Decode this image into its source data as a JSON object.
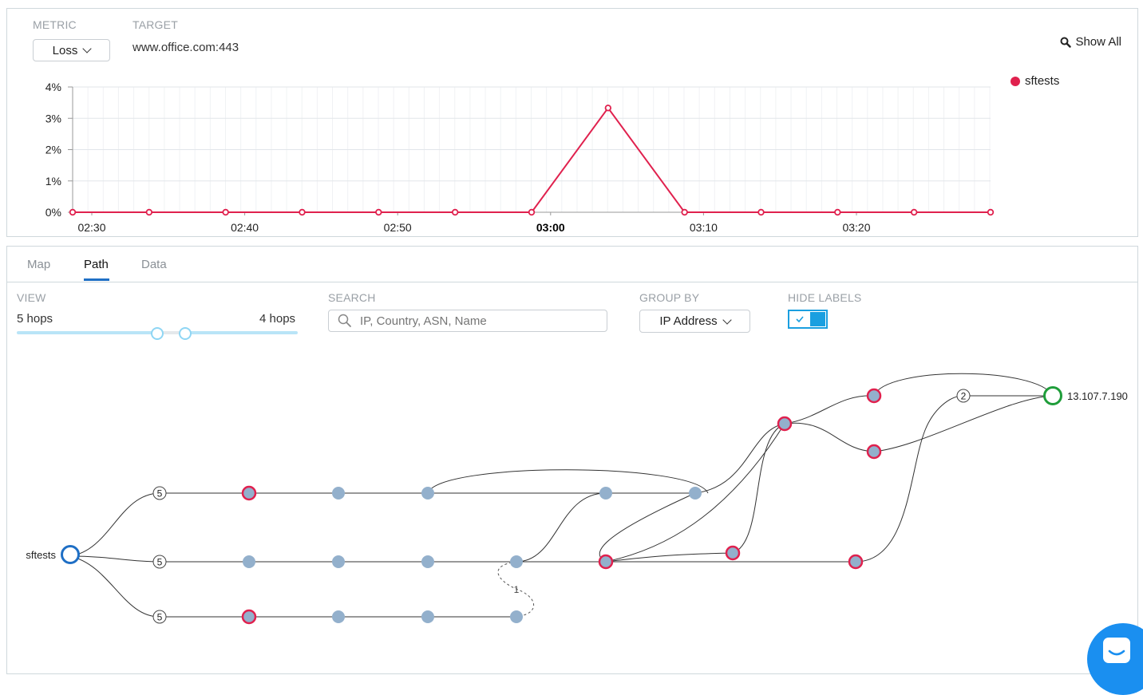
{
  "header": {
    "metric_label": "METRIC",
    "metric_value": "Loss",
    "target_label": "TARGET",
    "target_value": "www.office.com:443",
    "show_all": "Show All",
    "legend_series": "sftests"
  },
  "chart_data": {
    "type": "line",
    "y_ticks": [
      "0%",
      "1%",
      "2%",
      "3%",
      "4%"
    ],
    "x_ticks": [
      "02:30",
      "02:40",
      "02:50",
      "03:00",
      "03:10",
      "03:20"
    ],
    "x_highlight": "03:00",
    "ylim": [
      0,
      4
    ],
    "series": [
      {
        "name": "sftests",
        "values": [
          0,
          0,
          0,
          0,
          0,
          0,
          0,
          3.33,
          0,
          0,
          0,
          0,
          0
        ]
      }
    ],
    "legend_position": "top-right",
    "colors": {
      "series": "#e0214e"
    }
  },
  "tabs": {
    "map": "Map",
    "path": "Path",
    "data": "Data"
  },
  "controls": {
    "view_label": "VIEW",
    "view_from": "5 hops",
    "view_to": "4 hops",
    "search_label": "SEARCH",
    "search_placeholder": "IP, Country, ASN, Name",
    "group_label": "GROUP BY",
    "group_value": "IP Address",
    "hide_label": "HIDE LABELS"
  },
  "path": {
    "source": "sftests",
    "destination": "13.107.7.190",
    "hop_counts": [
      "5",
      "5",
      "5",
      "2"
    ],
    "link_label": "1"
  },
  "colors": {
    "accent": "#1f6fc5",
    "loss": "#e0214e",
    "node": "#93b0cc",
    "dest": "#1f9d3a",
    "toggle": "#1a9fe0"
  }
}
